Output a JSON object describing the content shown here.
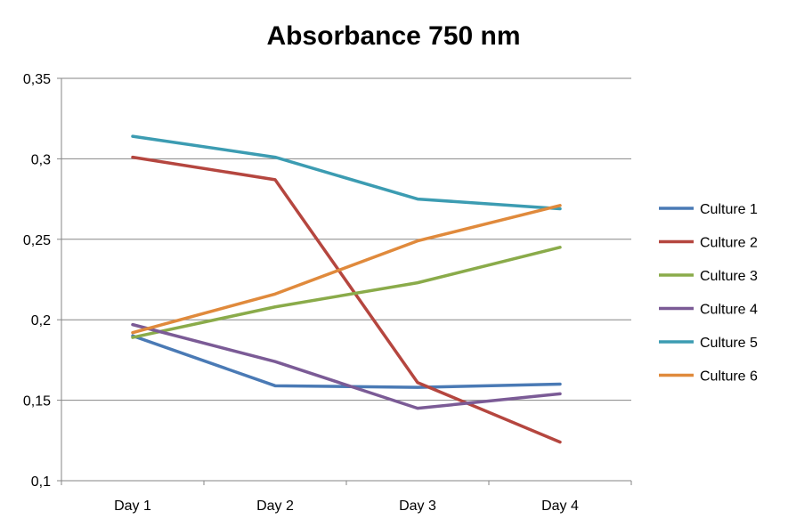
{
  "chart_data": {
    "type": "line",
    "title": "Absorbance 750 nm",
    "xlabel": "",
    "ylabel": "",
    "categories": [
      "Day 1",
      "Day 2",
      "Day 3",
      "Day 4"
    ],
    "y_ticks": [
      "0,1",
      "0,15",
      "0,2",
      "0,25",
      "0,3",
      "0,35"
    ],
    "ylim": [
      0.1,
      0.35
    ],
    "grid": true,
    "legend_position": "right",
    "series": [
      {
        "name": "Culture 1",
        "color": "#4a7ab5",
        "values": [
          0.19,
          0.159,
          0.158,
          0.16
        ]
      },
      {
        "name": "Culture 2",
        "color": "#b5463f",
        "values": [
          0.301,
          0.287,
          0.161,
          0.124
        ]
      },
      {
        "name": "Culture 3",
        "color": "#8aab4a",
        "values": [
          0.189,
          0.208,
          0.223,
          0.245
        ]
      },
      {
        "name": "Culture 4",
        "color": "#7b5b96",
        "values": [
          0.197,
          0.174,
          0.145,
          0.154
        ]
      },
      {
        "name": "Culture 5",
        "color": "#3c9cb2",
        "values": [
          0.314,
          0.301,
          0.275,
          0.269
        ]
      },
      {
        "name": "Culture 6",
        "color": "#e08a3c",
        "values": [
          0.192,
          0.216,
          0.249,
          0.271
        ]
      }
    ]
  }
}
